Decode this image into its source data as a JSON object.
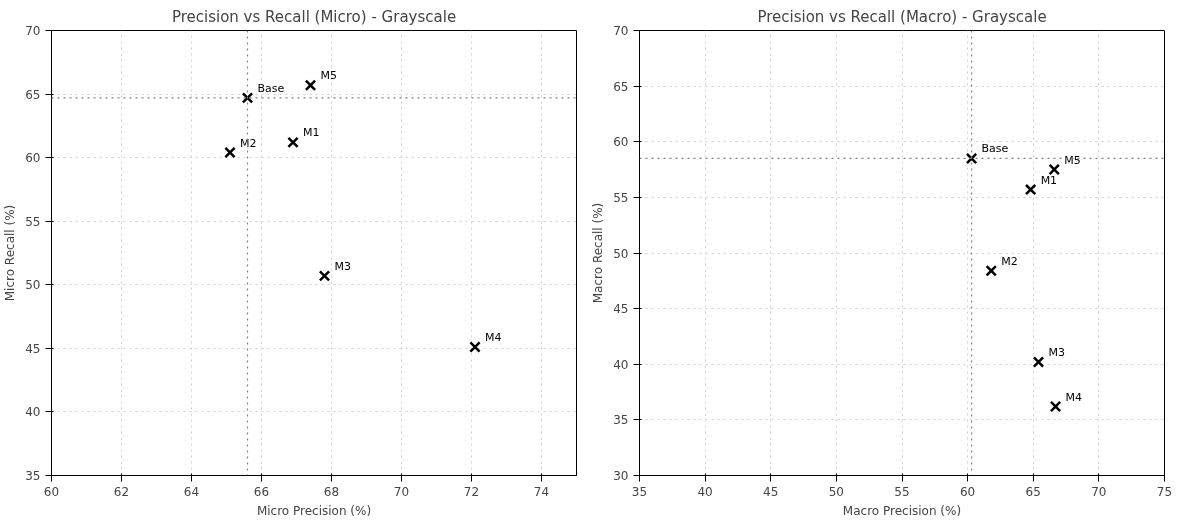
{
  "chart_data": [
    {
      "type": "scatter",
      "title": "Precision vs Recall (Micro) - Grayscale",
      "xlabel": "Micro Precision (%)",
      "ylabel": "Micro Recall (%)",
      "xlim": [
        60,
        75
      ],
      "xticks": [
        60,
        62,
        64,
        66,
        68,
        70,
        72,
        74
      ],
      "ylim": [
        35,
        70
      ],
      "yticks": [
        35,
        40,
        45,
        50,
        55,
        60,
        65,
        70
      ],
      "grid": true,
      "marker": "cross",
      "series": [
        {
          "color": "#000000",
          "x": [
            65.6,
            66.9,
            65.1,
            67.8,
            72.1,
            67.4
          ],
          "values": [
            64.7,
            61.2,
            60.4,
            50.7,
            45.1,
            65.7
          ]
        }
      ],
      "annotations": [
        {
          "text": "Base",
          "x": 65.6,
          "y": 64.7
        },
        {
          "text": "M1",
          "x": 66.9,
          "y": 61.2
        },
        {
          "text": "M2",
          "x": 65.1,
          "y": 60.4
        },
        {
          "text": "M3",
          "x": 67.8,
          "y": 50.7
        },
        {
          "text": "M4",
          "x": 72.1,
          "y": 45.1
        },
        {
          "text": "M5",
          "x": 67.4,
          "y": 65.7
        }
      ],
      "ref_lines": [
        {
          "axis": "x",
          "value": 65.6,
          "color": "#808080",
          "line_style": "dotted"
        },
        {
          "axis": "y",
          "value": 64.7,
          "color": "#808080",
          "line_style": "dotted"
        }
      ]
    },
    {
      "type": "scatter",
      "title": "Precision vs Recall (Macro) - Grayscale",
      "xlabel": "Macro Precision (%)",
      "ylabel": "Macro Recall (%)",
      "xlim": [
        35,
        75
      ],
      "xticks": [
        35,
        40,
        45,
        50,
        55,
        60,
        65,
        70,
        75
      ],
      "ylim": [
        30,
        70
      ],
      "yticks": [
        30,
        35,
        40,
        45,
        50,
        55,
        60,
        65,
        70
      ],
      "grid": true,
      "marker": "cross",
      "series": [
        {
          "color": "#000000",
          "x": [
            60.3,
            64.8,
            61.8,
            65.4,
            66.7,
            66.6
          ],
          "values": [
            58.5,
            55.7,
            48.4,
            40.2,
            36.2,
            57.5
          ]
        }
      ],
      "annotations": [
        {
          "text": "Base",
          "x": 60.3,
          "y": 58.5
        },
        {
          "text": "M1",
          "x": 64.8,
          "y": 55.7
        },
        {
          "text": "M2",
          "x": 61.8,
          "y": 48.4
        },
        {
          "text": "M3",
          "x": 65.4,
          "y": 40.2
        },
        {
          "text": "M4",
          "x": 66.7,
          "y": 36.2
        },
        {
          "text": "M5",
          "x": 66.6,
          "y": 57.5
        }
      ],
      "ref_lines": [
        {
          "axis": "x",
          "value": 60.3,
          "color": "#808080",
          "line_style": "dotted"
        },
        {
          "axis": "y",
          "value": 58.5,
          "color": "#808080",
          "line_style": "dotted"
        }
      ]
    }
  ]
}
